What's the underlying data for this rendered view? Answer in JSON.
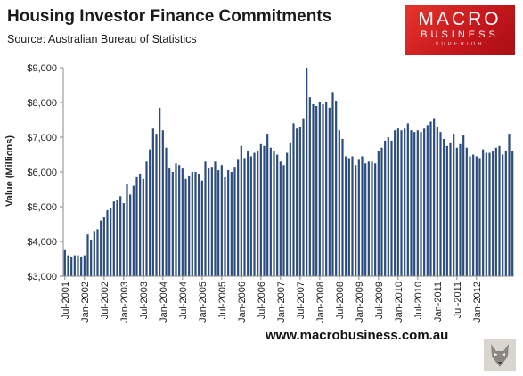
{
  "header": {
    "title": "Housing Investor Finance Commitments",
    "source": "Source: Australian Bureau of Statistics"
  },
  "logo": {
    "line1": "MACRO",
    "line2": "BUSINESS",
    "line3": "SUPERIOR"
  },
  "footer": {
    "url": "www.macrobusiness.com.au"
  },
  "colors": {
    "bar": "#2b4c7e",
    "logo_red": "#c4161c"
  },
  "chart_data": {
    "type": "bar",
    "title": "Housing Investor Finance Commitments",
    "ylabel": "Value (Millions)",
    "xlabel": "",
    "ylim": [
      3000,
      9000
    ],
    "yticks": [
      3000,
      4000,
      5000,
      6000,
      7000,
      8000,
      9000
    ],
    "ytick_labels": [
      "$3,000",
      "$4,000",
      "$5,000",
      "$6,000",
      "$7,000",
      "$8,000",
      "$9,000"
    ],
    "grid": false,
    "legend": "none",
    "x_start": "Jul-2001",
    "x_end": "Jan-2012",
    "x_tick_labels": [
      "Jul-2001",
      "Jan-2002",
      "Jul-2002",
      "Jan-2003",
      "Jul-2003",
      "Jan-2004",
      "Jul-2004",
      "Jan-2005",
      "Jul-2005",
      "Jan-2006",
      "Jul-2006",
      "Jan-2007",
      "Jul-2007",
      "Jan-2008",
      "Jul-2008",
      "Jan-2009",
      "Jul-2009",
      "Jan-2010",
      "Jul-2010",
      "Jan-2011",
      "Jul-2011",
      "Jan-2012"
    ],
    "values": [
      3750,
      3600,
      3550,
      3600,
      3600,
      3550,
      3600,
      4200,
      4050,
      4300,
      4350,
      4600,
      4700,
      4900,
      4950,
      5150,
      5200,
      5300,
      5100,
      5650,
      5350,
      5600,
      5850,
      5950,
      5800,
      6300,
      6650,
      7250,
      7100,
      7850,
      7200,
      6700,
      6100,
      6000,
      6250,
      6200,
      6100,
      5800,
      5900,
      6000,
      6000,
      5950,
      5750,
      6300,
      6100,
      6150,
      6300,
      6050,
      6200,
      5850,
      6050,
      6000,
      6150,
      6350,
      6750,
      6400,
      6600,
      6450,
      6550,
      6600,
      6800,
      6750,
      7100,
      6700,
      6600,
      6500,
      6300,
      6200,
      6550,
      6850,
      7400,
      7250,
      7300,
      7550,
      9000,
      8150,
      7950,
      7900,
      8000,
      7950,
      8000,
      7850,
      8300,
      8050,
      7200,
      6950,
      6450,
      6400,
      6450,
      6200,
      6350,
      6450,
      6250,
      6300,
      6300,
      6250,
      6600,
      6700,
      6900,
      7000,
      6900,
      7200,
      7250,
      7200,
      7250,
      7400,
      7200,
      7150,
      7200,
      7150,
      7250,
      7350,
      7450,
      7550,
      7300,
      7150,
      6950,
      6750,
      6850,
      7100,
      6700,
      6800,
      7050,
      6700,
      6450,
      6500,
      6450,
      6400,
      6650,
      6550,
      6550,
      6600,
      6700,
      6750,
      6500,
      6600,
      7100,
      6600
    ]
  }
}
